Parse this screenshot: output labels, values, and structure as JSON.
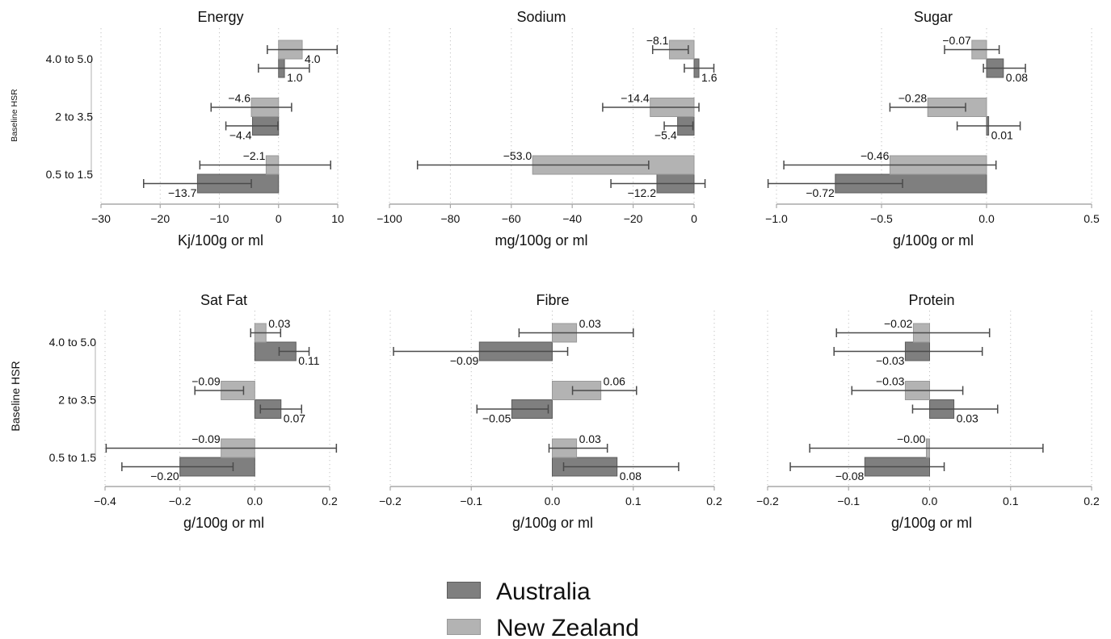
{
  "chart_data": {
    "type": "bar",
    "orientation": "horizontal",
    "ylabel": "Baseline HSR",
    "categories": [
      "4.0 to 5.0",
      "2 to 3.5",
      "0.5 to 1.5"
    ],
    "series": [
      {
        "name": "Australia",
        "color": "#7f7f7f"
      },
      {
        "name": "New Zealand",
        "color": "#b3b3b3"
      }
    ],
    "legend": "bottom",
    "grid": true,
    "panels": [
      {
        "title": "Energy",
        "xlabel": "Kj/100g or ml",
        "xlim": [
          -30,
          10
        ],
        "xticks": [
          -30,
          -20,
          -10,
          0,
          10
        ],
        "xtick_labels": [
          "−30",
          "−20",
          "−10",
          "0",
          "10"
        ],
        "series": [
          {
            "values": [
              1.0,
              -4.4,
              -13.7
            ],
            "ci_low": [
              -3.4,
              -8.9,
              -22.8
            ],
            "ci_high": [
              5.2,
              -0.1,
              -4.6
            ],
            "labels": [
              "1.0",
              "−4.4",
              "−13.7"
            ]
          },
          {
            "values": [
              4.0,
              -4.6,
              -2.1
            ],
            "ci_low": [
              -1.9,
              -11.4,
              -13.3
            ],
            "ci_high": [
              9.9,
              2.2,
              8.8
            ],
            "labels": [
              "4.0",
              "−4.6",
              "−2.1"
            ]
          }
        ]
      },
      {
        "title": "Sodium",
        "xlabel": "mg/100g or ml",
        "xlim": [
          -100,
          0
        ],
        "xticks": [
          -100,
          -80,
          -60,
          -40,
          -20,
          0
        ],
        "xtick_labels": [
          "−100",
          "−80",
          "−60",
          "−40",
          "−20",
          "0"
        ],
        "series": [
          {
            "values": [
              1.6,
              -5.4,
              -12.2
            ],
            "ci_low": [
              -3.2,
              -9.8,
              -27.3
            ],
            "ci_high": [
              6.5,
              -0.4,
              3.6
            ],
            "labels": [
              "1.6",
              "−5.4",
              "−12.2"
            ]
          },
          {
            "values": [
              -8.1,
              -14.4,
              -53.0
            ],
            "ci_low": [
              -13.6,
              -30.0,
              -90.8
            ],
            "ci_high": [
              -1.9,
              1.6,
              -14.9
            ],
            "labels": [
              "−8.1",
              "−14.4",
              "−53.0"
            ]
          }
        ]
      },
      {
        "title": "Sugar",
        "xlabel": "g/100g or ml",
        "xlim": [
          -1.0,
          0.5
        ],
        "xticks": [
          -1.0,
          -0.5,
          0.0,
          0.5
        ],
        "xtick_labels": [
          "−1.0",
          "−0.5",
          "0.0",
          "0.5"
        ],
        "series": [
          {
            "values": [
              0.08,
              0.01,
              -0.72
            ],
            "ci_low": [
              -0.015,
              -0.14,
              -1.04
            ],
            "ci_high": [
              0.185,
              0.16,
              -0.4
            ],
            "labels": [
              "0.08",
              "0.01",
              "−0.72"
            ]
          },
          {
            "values": [
              -0.07,
              -0.28,
              -0.46
            ],
            "ci_low": [
              -0.2,
              -0.46,
              -0.965
            ],
            "ci_high": [
              0.06,
              -0.1,
              0.045
            ],
            "labels": [
              "−0.07",
              "−0.28",
              "−0.46"
            ]
          }
        ]
      },
      {
        "title": "Sat Fat",
        "xlabel": "g/100g or ml",
        "xlim": [
          -0.4,
          0.2
        ],
        "xticks": [
          -0.4,
          -0.2,
          0.0,
          0.2
        ],
        "xtick_labels": [
          "−0.4",
          "−0.2",
          "0.0",
          "0.2"
        ],
        "series": [
          {
            "values": [
              0.11,
              0.07,
              -0.2
            ],
            "ci_low": [
              0.065,
              0.015,
              -0.355
            ],
            "ci_high": [
              0.145,
              0.125,
              -0.058
            ],
            "labels": [
              "0.11",
              "0.07",
              "−0.20"
            ]
          },
          {
            "values": [
              0.03,
              -0.09,
              -0.09
            ],
            "ci_low": [
              -0.011,
              -0.16,
              -0.397
            ],
            "ci_high": [
              0.069,
              -0.03,
              0.218
            ],
            "labels": [
              "0.03",
              "−0.09",
              "−0.09"
            ]
          }
        ]
      },
      {
        "title": "Fibre",
        "xlabel": "g/100g or ml",
        "xlim": [
          -0.2,
          0.2
        ],
        "xticks": [
          -0.2,
          -0.1,
          0.0,
          0.1,
          0.2
        ],
        "xtick_labels": [
          "−0.2",
          "−0.1",
          "0.0",
          "0.1",
          "0.2"
        ],
        "series": [
          {
            "values": [
              -0.09,
              -0.05,
              0.08
            ],
            "ci_low": [
              -0.196,
              -0.093,
              0.014
            ],
            "ci_high": [
              0.019,
              -0.005,
              0.156
            ],
            "labels": [
              "−0.09",
              "−0.05",
              "0.08"
            ]
          },
          {
            "values": [
              0.03,
              0.06,
              0.03
            ],
            "ci_low": [
              -0.041,
              0.025,
              -0.004
            ],
            "ci_high": [
              0.1,
              0.104,
              0.068
            ],
            "labels": [
              "0.03",
              "0.06",
              "0.03"
            ]
          }
        ]
      },
      {
        "title": "Protein",
        "xlabel": "g/100g or ml",
        "xlim": [
          -0.2,
          0.2
        ],
        "xticks": [
          -0.2,
          -0.1,
          0.0,
          0.1,
          0.2
        ],
        "xtick_labels": [
          "−0.2",
          "−0.1",
          "0.0",
          "0.1",
          "0.2"
        ],
        "series": [
          {
            "values": [
              -0.03,
              0.03,
              -0.08
            ],
            "ci_low": [
              -0.118,
              -0.021,
              -0.172
            ],
            "ci_high": [
              0.065,
              0.084,
              0.018
            ],
            "labels": [
              "−0.03",
              "0.03",
              "−0.08"
            ]
          },
          {
            "values": [
              -0.02,
              -0.03,
              -0.004
            ],
            "ci_low": [
              -0.115,
              -0.096,
              -0.148
            ],
            "ci_high": [
              0.074,
              0.041,
              0.14
            ],
            "labels": [
              "−0.02",
              "−0.03",
              "−0.00"
            ]
          }
        ]
      }
    ]
  }
}
